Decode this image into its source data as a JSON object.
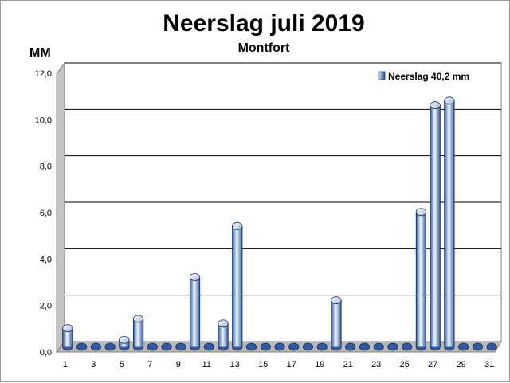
{
  "chart_data": {
    "type": "bar",
    "title": "Neerslag juli 2019",
    "subtitle": "Montfort",
    "ylabel": "MM",
    "xlabel": "",
    "ylim": [
      0,
      12
    ],
    "yticks": [
      "0,0",
      "2,0",
      "4,0",
      "6,0",
      "8,0",
      "10,0",
      "12,0"
    ],
    "ytick_values": [
      0,
      2,
      4,
      6,
      8,
      10,
      12
    ],
    "categories": [
      "1",
      "2",
      "3",
      "4",
      "5",
      "6",
      "7",
      "8",
      "9",
      "10",
      "11",
      "12",
      "13",
      "14",
      "15",
      "16",
      "17",
      "18",
      "19",
      "20",
      "21",
      "22",
      "23",
      "24",
      "25",
      "26",
      "27",
      "28",
      "29",
      "30",
      "31"
    ],
    "xtick_labels": [
      "1",
      "3",
      "5",
      "7",
      "9",
      "11",
      "13",
      "15",
      "17",
      "19",
      "21",
      "23",
      "25",
      "27",
      "29",
      "31"
    ],
    "series": [
      {
        "name": "Neerslag 40,2 mm",
        "values": [
          0.8,
          0,
          0,
          0,
          0.3,
          1.2,
          0,
          0,
          0,
          3.0,
          0,
          1.0,
          5.2,
          0,
          0,
          0,
          0,
          0,
          0,
          2.0,
          0,
          0,
          0,
          0,
          0,
          5.8,
          10.4,
          10.6,
          0,
          0,
          0
        ]
      }
    ],
    "grid": true,
    "legend_position": "top-right",
    "colors": {
      "bar_dark": "#2a5aa8",
      "bar_light": "#e8f0fb",
      "grid": "#000000",
      "wall": "#c0c0c0"
    }
  }
}
